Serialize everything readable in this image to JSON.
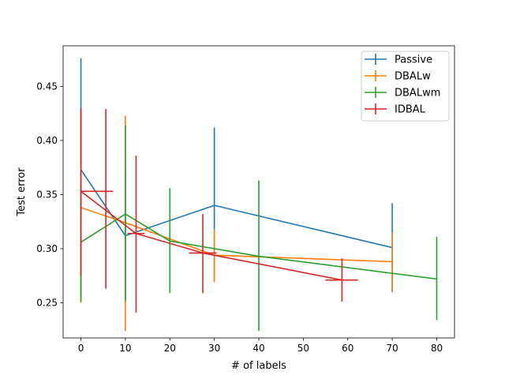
{
  "chart_data": {
    "type": "line",
    "title": "",
    "xlabel": "# of labels",
    "ylabel": "Test error",
    "xlim": [
      -4,
      84
    ],
    "ylim": [
      0.2175,
      0.4875
    ],
    "xticks": [
      0,
      10,
      20,
      30,
      40,
      50,
      60,
      70,
      80
    ],
    "yticks": [
      0.25,
      0.3,
      0.35,
      0.4,
      0.45
    ],
    "ytick_labels": [
      "0.25",
      "0.30",
      "0.35",
      "0.40",
      "0.45"
    ],
    "legend_position": "top-right",
    "series": [
      {
        "name": "Passive",
        "color": "#1f77b4",
        "points": [
          {
            "x": 0,
            "y": 0.373,
            "ylo": 0.273,
            "yhi": 0.476
          },
          {
            "x": 10,
            "y": 0.312,
            "ylo": 0.251,
            "yhi": 0.372
          },
          {
            "x": 30,
            "y": 0.34,
            "ylo": 0.27,
            "yhi": 0.412
          },
          {
            "x": 70,
            "y": 0.301,
            "ylo": 0.26,
            "yhi": 0.342
          }
        ]
      },
      {
        "name": "DBALw",
        "color": "#ff7f0e",
        "points": [
          {
            "x": 0,
            "y": 0.338,
            "ylo": 0.25,
            "yhi": 0.425
          },
          {
            "x": 10,
            "y": 0.324,
            "ylo": 0.224,
            "yhi": 0.423
          },
          {
            "x": 30,
            "y": 0.294,
            "ylo": 0.269,
            "yhi": 0.318
          },
          {
            "x": 70,
            "y": 0.288,
            "ylo": 0.261,
            "yhi": 0.315
          }
        ]
      },
      {
        "name": "DBALwm",
        "color": "#2ca02c",
        "points": [
          {
            "x": 0,
            "y": 0.306,
            "ylo": 0.251,
            "yhi": 0.361
          },
          {
            "x": 10,
            "y": 0.332,
            "ylo": 0.252,
            "yhi": 0.414
          },
          {
            "x": 20,
            "y": 0.307,
            "ylo": 0.259,
            "yhi": 0.356
          },
          {
            "x": 40,
            "y": 0.293,
            "ylo": 0.224,
            "yhi": 0.363
          },
          {
            "x": 80,
            "y": 0.272,
            "ylo": 0.234,
            "yhi": 0.311
          }
        ]
      },
      {
        "name": "IDBAL",
        "color": "#d62728",
        "points": [
          {
            "x": 0,
            "y": 0.353,
            "xlo": 0,
            "xhi": 7.2,
            "ylo": 0.275,
            "yhi": 0.43
          },
          {
            "x": 12.4,
            "y": 0.314,
            "xlo": 10.5,
            "xhi": 14.3,
            "ylo": 0.241,
            "yhi": 0.386
          },
          {
            "x": 27.4,
            "y": 0.296,
            "xlo": 24.3,
            "xhi": 30.5,
            "ylo": 0.259,
            "yhi": 0.332
          },
          {
            "x": 58.7,
            "y": 0.271,
            "xlo": 55.0,
            "xhi": 62.3,
            "ylo": 0.251,
            "yhi": 0.291
          }
        ],
        "extra_vertical_errorbars": [
          {
            "x": 5.6,
            "ylo": 0.263,
            "yhi": 0.429
          }
        ]
      }
    ]
  }
}
